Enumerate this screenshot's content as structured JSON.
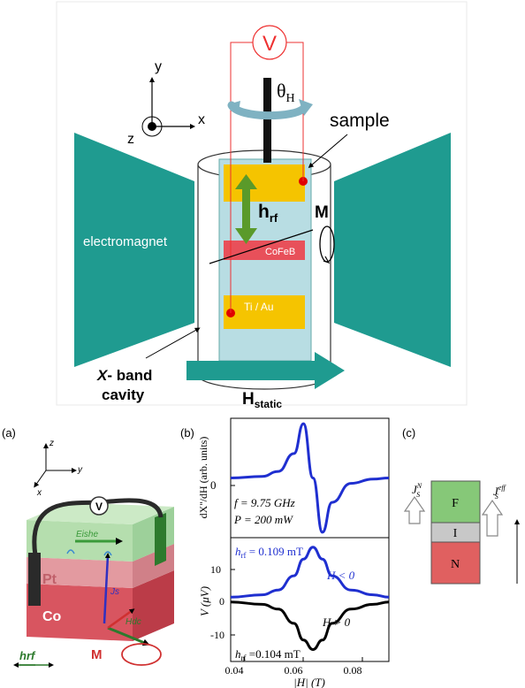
{
  "top": {
    "voltmeter": "V",
    "theta": "θ",
    "theta_sub": "H",
    "sample": "sample",
    "axis_y": "y",
    "axis_x": "x",
    "axis_z": "z",
    "hrf": "h",
    "hrf_sub": "rf",
    "magnetization": "M",
    "cofeb": "CoFeB",
    "tiau": "Ti / Au",
    "electromagnet": "electromagnet",
    "cavity_line1_italic": "X",
    "cavity_line1_rest": "- band",
    "cavity_line2": "cavity",
    "hstatic": "H",
    "hstatic_sub": "static",
    "colors": {
      "magnet": "#1f9b90",
      "gold": "#f5c400",
      "cofeb": "#e8505a",
      "sample": "#b8dde3",
      "wire": "#ee3030"
    }
  },
  "panel_a": {
    "label": "(a)",
    "axis_z": "z",
    "axis_y": "y",
    "axis_x": "x",
    "voltmeter": "V",
    "eishe": "Eishe",
    "pt": "Pt",
    "co": "Co",
    "js": "Js",
    "hdc": "Hdc",
    "hrf": "hrf",
    "m": "M"
  },
  "panel_b": {
    "label": "(b)",
    "top_ylabel": "dX''/dH (arb. units)",
    "top_zero": "0",
    "freq": "f = 9.75 GHz",
    "power": "P = 200 mW",
    "bottom_ylabel": "V (μV)",
    "hrf_top": "h",
    "hrf_top_sub": "rf",
    "hrf_top_val": " = 0.109 mT",
    "hrf_bottom": "h",
    "hrf_bottom_sub": "rf",
    "hrf_bottom_val": " =0.104 mT",
    "h_neg": "H < 0",
    "h_pos": "H > 0",
    "xlabel": "|H| (T)",
    "x_ticks": [
      "0.04",
      "0.06",
      "0.08"
    ],
    "y_ticks_bottom": [
      "10",
      "0",
      "-10"
    ]
  },
  "panel_c": {
    "label": "(c)",
    "f": "F",
    "i": "I",
    "n": "N",
    "js_n": "J",
    "js_n_sup": "N",
    "js_n_sub": "S",
    "js_eff": "J",
    "js_eff_sup": "eff",
    "js_eff_sub": "S",
    "colors": {
      "f": "#86c878",
      "i": "#c8c8c8",
      "n": "#e06060"
    }
  },
  "chart_data": [
    {
      "type": "line",
      "title": "",
      "xlabel": "|H| (T)",
      "ylabel": "dX''/dH (arb. units)",
      "xlim": [
        0.04,
        0.09
      ],
      "ylim": [
        -1.1,
        1.1
      ],
      "annotations": [
        "f = 9.75 GHz",
        "P = 200 mW"
      ],
      "series": [
        {
          "color": "#1f2fd0",
          "x": [
            0.04,
            0.05,
            0.055,
            0.06,
            0.063,
            0.066,
            0.069,
            0.072,
            0.078,
            0.085,
            0.09
          ],
          "y": [
            0,
            0.03,
            0.12,
            0.45,
            1.0,
            0.0,
            -1.0,
            -0.45,
            -0.1,
            -0.02,
            0
          ]
        }
      ]
    },
    {
      "type": "line",
      "title": "",
      "xlabel": "|H| (T)",
      "ylabel": "V (μV)",
      "xlim": [
        0.04,
        0.09
      ],
      "ylim": [
        -13,
        13
      ],
      "annotations": [
        "hrf = 0.109 mT",
        "hrf =0.104 mT",
        "H < 0",
        "H > 0"
      ],
      "series": [
        {
          "name": "H < 0",
          "color": "#1f2fd0",
          "x": [
            0.04,
            0.05,
            0.055,
            0.06,
            0.063,
            0.066,
            0.069,
            0.072,
            0.078,
            0.085,
            0.09
          ],
          "y": [
            0.5,
            1,
            2,
            5,
            8.5,
            11,
            8.5,
            5,
            2,
            1,
            0.5
          ]
        },
        {
          "name": "H > 0",
          "color": "#000000",
          "x": [
            0.04,
            0.05,
            0.055,
            0.06,
            0.063,
            0.066,
            0.069,
            0.072,
            0.078,
            0.085,
            0.09
          ],
          "y": [
            -0.5,
            -1,
            -2,
            -5,
            -8.5,
            -10.5,
            -8.5,
            -5,
            -2,
            -1,
            -0.5
          ]
        }
      ]
    }
  ]
}
